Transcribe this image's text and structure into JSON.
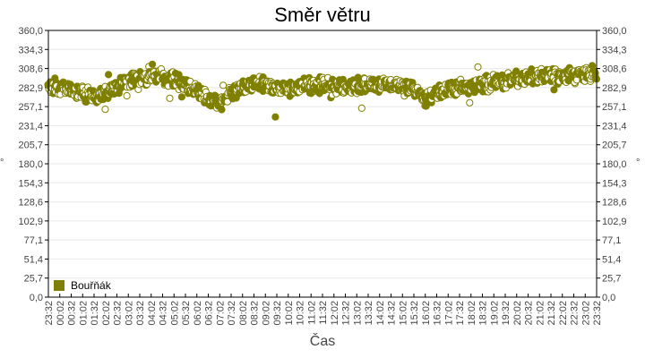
{
  "chart_data": {
    "type": "scatter",
    "title": "Směr větru",
    "xlabel": "Čas",
    "ylabel": "°",
    "ylabel_right": "°",
    "ylim": [
      0,
      360
    ],
    "y_ticks": [
      "0,0",
      "25,7",
      "51,4",
      "77,1",
      "102,9",
      "128,6",
      "154,3",
      "180,0",
      "205,7",
      "231,4",
      "257,1",
      "282,9",
      "308,6",
      "334,3",
      "360,0"
    ],
    "x_ticks": [
      "23:32",
      "00:02",
      "00:32",
      "01:02",
      "01:32",
      "02:02",
      "02:32",
      "03:02",
      "03:32",
      "04:02",
      "04:32",
      "05:02",
      "05:32",
      "06:02",
      "06:32",
      "07:02",
      "07:32",
      "08:02",
      "08:32",
      "09:02",
      "09:32",
      "10:02",
      "10:32",
      "11:02",
      "11:32",
      "12:02",
      "12:32",
      "13:02",
      "13:32",
      "14:02",
      "14:32",
      "15:02",
      "15:32",
      "16:02",
      "16:32",
      "17:02",
      "17:32",
      "18:02",
      "18:32",
      "19:02",
      "19:32",
      "20:02",
      "20:32",
      "21:02",
      "21:32",
      "22:02",
      "22:32",
      "23:02",
      "23:32"
    ],
    "grid": true,
    "legend_position": "bottom-left inside",
    "series": [
      {
        "name": "Bouřňák",
        "color": "#808000",
        "trend_by_half_hour": [
          286,
          284,
          280,
          276,
          273,
          276,
          285,
          292,
          296,
          299,
          297,
          293,
          286,
          278,
          264,
          262,
          275,
          285,
          289,
          286,
          282,
          280,
          284,
          285,
          287,
          283,
          284,
          286,
          287,
          285,
          287,
          283,
          279,
          268,
          275,
          280,
          283,
          285,
          287,
          289,
          291,
          294,
          296,
          298,
          300,
          298,
          299,
          300,
          302
        ],
        "spread": 12
      }
    ]
  },
  "title": "Směr větru",
  "x_axis_title": "Čas",
  "y_axis_unit_left": "°",
  "y_axis_unit_right": "°",
  "legend": {
    "label": "Bouřňák",
    "color": "#808000"
  }
}
